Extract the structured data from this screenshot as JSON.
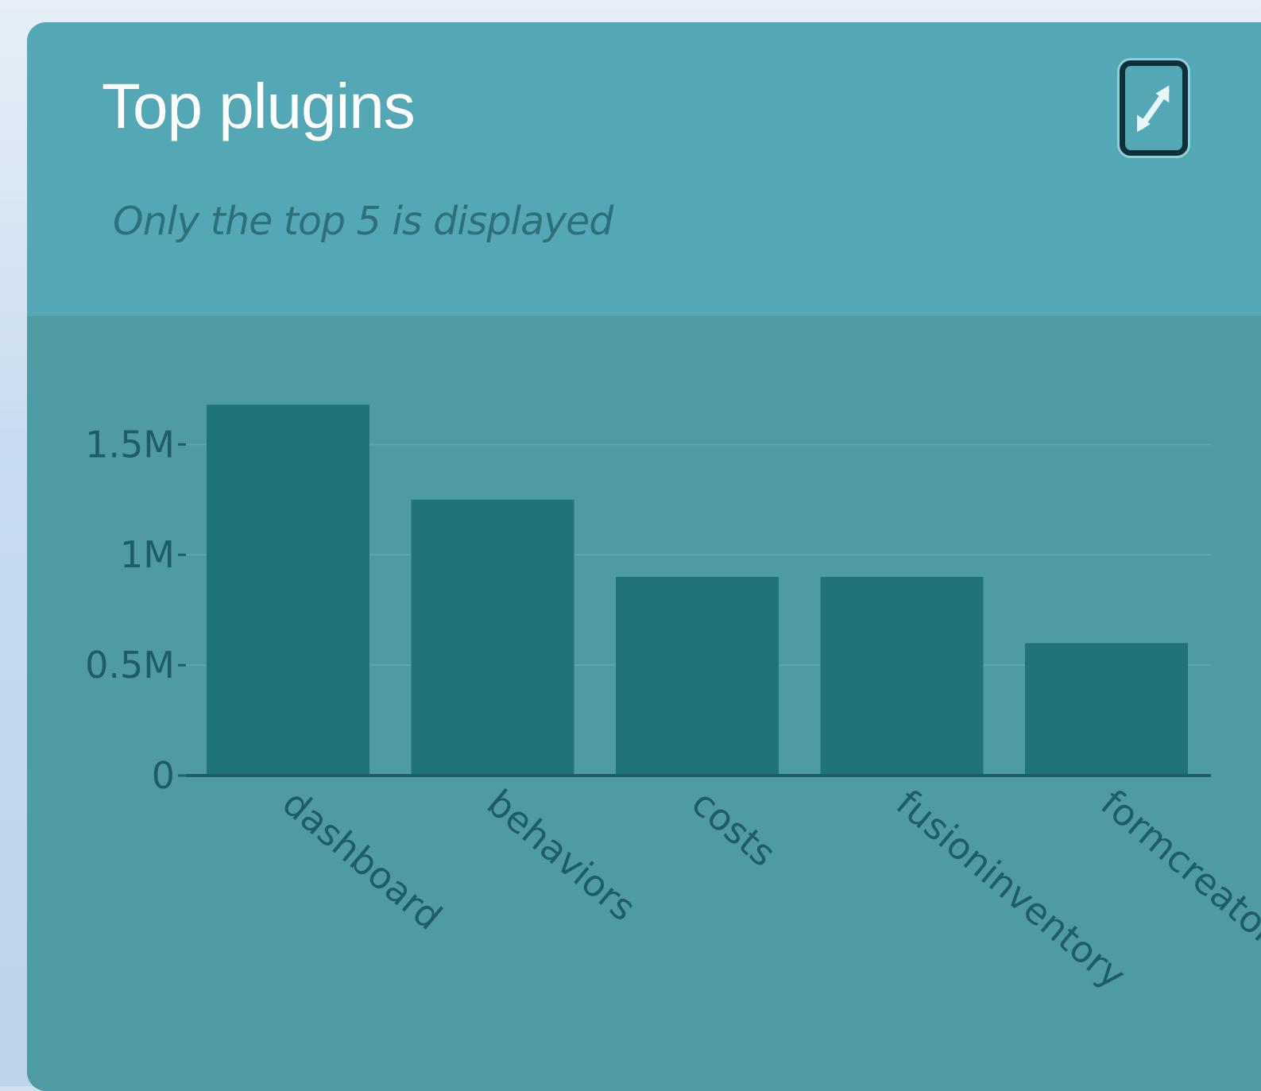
{
  "panel": {
    "title": "Top plugins",
    "subtitle": "Only the top 5 is displayed",
    "expand_icon": "expand-arrows-icon"
  },
  "colors": {
    "header_bg": "#54a8b5",
    "chart_bg": "#4f9ba4",
    "bar": "#21737b",
    "title": "#ffffff",
    "text_muted": "#1e5d68"
  },
  "chart_data": {
    "type": "bar",
    "title": "",
    "xlabel": "",
    "ylabel": "",
    "categories": [
      "dashboard",
      "behaviors",
      "costs",
      "fusioninventory",
      "formcreator"
    ],
    "values": [
      1680000,
      1250000,
      900000,
      900000,
      600000
    ],
    "ylim": [
      0,
      1800000
    ],
    "yticks": [
      {
        "value": 0,
        "label": "0"
      },
      {
        "value": 500000,
        "label": "0.5M"
      },
      {
        "value": 1000000,
        "label": "1M"
      },
      {
        "value": 1500000,
        "label": "1.5M"
      }
    ],
    "grid": true,
    "legend": "none"
  }
}
